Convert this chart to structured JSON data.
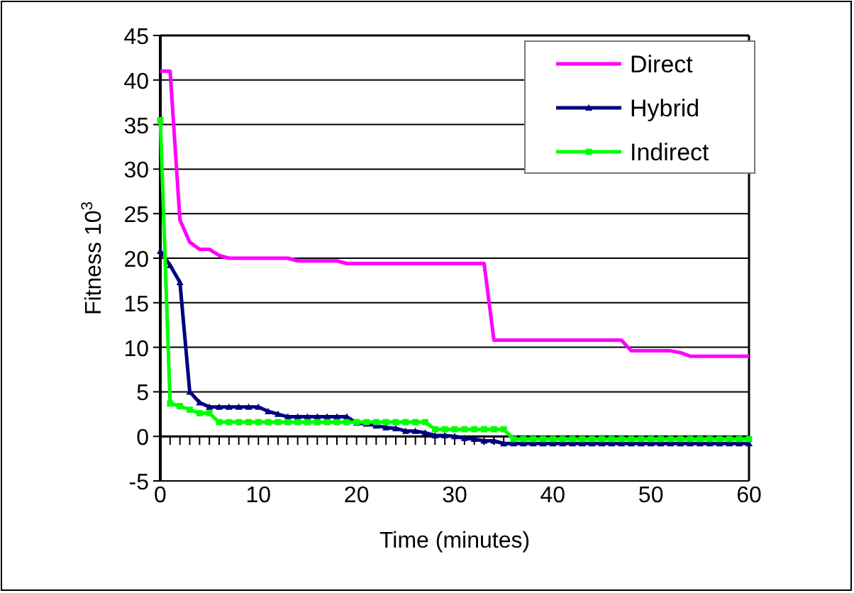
{
  "chart_data": {
    "type": "line",
    "xlabel": "Time (minutes)",
    "ylabel": "Fitness 10$^{3}$",
    "x": [
      0,
      1,
      2,
      3,
      4,
      5,
      6,
      7,
      8,
      9,
      10,
      11,
      12,
      13,
      14,
      15,
      16,
      17,
      18,
      19,
      20,
      21,
      22,
      23,
      24,
      25,
      26,
      27,
      28,
      29,
      30,
      31,
      32,
      33,
      34,
      35,
      36,
      37,
      38,
      39,
      40,
      41,
      42,
      43,
      44,
      45,
      46,
      47,
      48,
      49,
      50,
      51,
      52,
      53,
      54,
      55,
      56,
      57,
      58,
      59,
      60
    ],
    "xlim": [
      0,
      60
    ],
    "ylim": [
      -5,
      45
    ],
    "xticks": [
      0,
      {
        "value": 1,
        "label": null
      },
      {
        "value": 2,
        "label": null
      },
      {
        "value": 3,
        "label": null
      },
      {
        "value": 4,
        "label": null
      },
      {
        "value": 5,
        "label": null
      },
      {
        "value": 6,
        "label": null
      },
      {
        "value": 7,
        "label": null
      },
      {
        "value": 8,
        "label": null
      },
      {
        "value": 9,
        "label": null
      },
      10,
      {
        "value": 11,
        "label": null
      },
      {
        "value": 12,
        "label": null
      },
      {
        "value": 13,
        "label": null
      },
      {
        "value": 14,
        "label": null
      },
      {
        "value": 15,
        "label": null
      },
      {
        "value": 16,
        "label": null
      },
      {
        "value": 17,
        "label": null
      },
      {
        "value": 18,
        "label": null
      },
      {
        "value": 19,
        "label": null
      },
      20,
      {
        "value": 21,
        "label": null
      },
      {
        "value": 22,
        "label": null
      },
      {
        "value": 23,
        "label": null
      },
      {
        "value": 24,
        "label": null
      },
      {
        "value": 25,
        "label": null
      },
      {
        "value": 26,
        "label": null
      },
      {
        "value": 27,
        "label": null
      },
      {
        "value": 28,
        "label": null
      },
      {
        "value": 29,
        "label": null
      },
      30,
      {
        "value": 31,
        "label": null
      },
      {
        "value": 32,
        "label": null
      },
      {
        "value": 33,
        "label": null
      },
      {
        "value": 34,
        "label": null
      },
      {
        "value": 35,
        "label": null
      },
      {
        "value": 36,
        "label": null
      },
      {
        "value": 37,
        "label": null
      },
      {
        "value": 38,
        "label": null
      },
      {
        "value": 39,
        "label": null
      },
      40,
      {
        "value": 41,
        "label": null
      },
      {
        "value": 42,
        "label": null
      },
      {
        "value": 43,
        "label": null
      },
      {
        "value": 44,
        "label": null
      },
      {
        "value": 45,
        "label": null
      },
      {
        "value": 46,
        "label": null
      },
      {
        "value": 47,
        "label": null
      },
      {
        "value": 48,
        "label": null
      },
      {
        "value": 49,
        "label": null
      },
      50,
      {
        "value": 51,
        "label": null
      },
      {
        "value": 52,
        "label": null
      },
      {
        "value": 53,
        "label": null
      },
      {
        "value": 54,
        "label": null
      },
      {
        "value": 55,
        "label": null
      },
      {
        "value": 56,
        "label": null
      },
      {
        "value": 57,
        "label": null
      },
      {
        "value": 58,
        "label": null
      },
      {
        "value": 59,
        "label": null
      },
      60
    ],
    "yticks": [
      -5,
      0,
      5,
      10,
      15,
      20,
      25,
      30,
      35,
      40,
      45
    ],
    "grid": "y",
    "legend": "top right",
    "line_style": "solid",
    "series": [
      {
        "name": "Direct",
        "color": "#ff00ff",
        "marker": "none",
        "values": [
          41,
          41,
          24.3,
          21.8,
          21,
          21,
          20.3,
          20,
          20,
          20,
          20,
          20,
          20,
          20,
          19.7,
          19.7,
          19.7,
          19.7,
          19.7,
          19.4,
          19.4,
          19.4,
          19.4,
          19.4,
          19.4,
          19.4,
          19.4,
          19.4,
          19.4,
          19.4,
          19.4,
          19.4,
          19.4,
          19.4,
          10.8,
          10.8,
          10.8,
          10.8,
          10.8,
          10.8,
          10.8,
          10.8,
          10.8,
          10.8,
          10.8,
          10.8,
          10.8,
          10.8,
          9.6,
          9.6,
          9.6,
          9.6,
          9.6,
          9.4,
          9,
          9,
          9,
          9,
          9,
          9,
          9
        ]
      },
      {
        "name": "Hybrid",
        "color": "#000080",
        "marker": "triangle",
        "values": [
          20.8,
          19.2,
          17.3,
          5,
          3.8,
          3.3,
          3.3,
          3.3,
          3.3,
          3.3,
          3.3,
          2.8,
          2.5,
          2.2,
          2.2,
          2.2,
          2.2,
          2.2,
          2.2,
          2.2,
          1.5,
          1.4,
          1.2,
          1,
          0.9,
          0.6,
          0.6,
          0.4,
          0.1,
          0.1,
          0,
          -0.2,
          -0.3,
          -0.5,
          -0.5,
          -0.8,
          -0.8,
          -0.8,
          -0.8,
          -0.8,
          -0.8,
          -0.8,
          -0.8,
          -0.8,
          -0.8,
          -0.8,
          -0.8,
          -0.8,
          -0.8,
          -0.8,
          -0.8,
          -0.8,
          -0.8,
          -0.8,
          -0.8,
          -0.8,
          -0.8,
          -0.8,
          -0.8,
          -0.8,
          -0.8
        ]
      },
      {
        "name": "Indirect",
        "color": "#00ff00",
        "marker": "square",
        "values": [
          35.5,
          3.7,
          3.4,
          3,
          2.6,
          2.6,
          1.6,
          1.6,
          1.6,
          1.6,
          1.6,
          1.6,
          1.6,
          1.6,
          1.6,
          1.6,
          1.6,
          1.6,
          1.6,
          1.6,
          1.6,
          1.6,
          1.6,
          1.6,
          1.6,
          1.6,
          1.6,
          1.6,
          0.8,
          0.8,
          0.8,
          0.8,
          0.8,
          0.8,
          0.8,
          0.8,
          -0.3,
          -0.3,
          -0.3,
          -0.3,
          -0.3,
          -0.3,
          -0.3,
          -0.3,
          -0.3,
          -0.3,
          -0.3,
          -0.3,
          -0.3,
          -0.3,
          -0.3,
          -0.3,
          -0.3,
          -0.3,
          -0.3,
          -0.3,
          -0.3,
          -0.3,
          -0.3,
          -0.3,
          -0.3
        ]
      }
    ]
  }
}
